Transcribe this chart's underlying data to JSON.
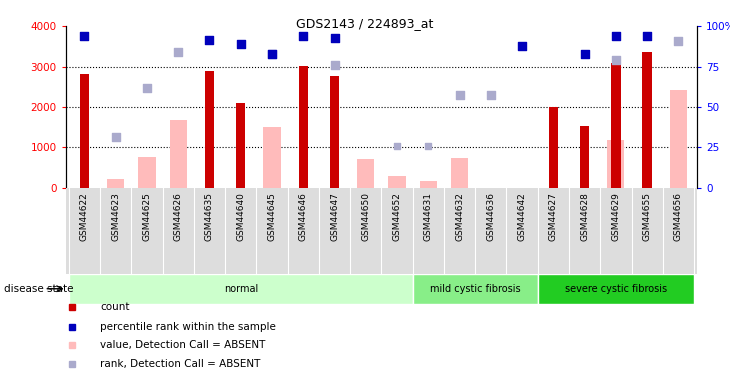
{
  "title": "GDS2143 / 224893_at",
  "samples": [
    "GSM44622",
    "GSM44623",
    "GSM44625",
    "GSM44626",
    "GSM44635",
    "GSM44640",
    "GSM44645",
    "GSM44646",
    "GSM44647",
    "GSM44650",
    "GSM44652",
    "GSM44631",
    "GSM44632",
    "GSM44636",
    "GSM44642",
    "GSM44627",
    "GSM44628",
    "GSM44629",
    "GSM44655",
    "GSM44656"
  ],
  "groups": [
    {
      "label": "normal",
      "start": 0,
      "end": 10,
      "color": "#ccffcc"
    },
    {
      "label": "mild cystic fibrosis",
      "start": 11,
      "end": 14,
      "color": "#88ee88"
    },
    {
      "label": "severe cystic fibrosis",
      "start": 15,
      "end": 19,
      "color": "#22cc22"
    }
  ],
  "count_values": [
    2820,
    null,
    null,
    null,
    2900,
    2100,
    null,
    3010,
    2760,
    null,
    null,
    null,
    null,
    null,
    null,
    2000,
    1520,
    3100,
    3350,
    null
  ],
  "rank_values": [
    3750,
    null,
    null,
    null,
    3670,
    3560,
    3300,
    3760,
    3700,
    null,
    null,
    null,
    null,
    null,
    3510,
    null,
    3310,
    3750,
    3750,
    null
  ],
  "absent_count_values": [
    null,
    200,
    750,
    1680,
    null,
    null,
    1490,
    null,
    null,
    700,
    290,
    170,
    720,
    null,
    null,
    null,
    null,
    1190,
    null,
    2430
  ],
  "absent_rank_values": [
    null,
    1260,
    2480,
    3360,
    null,
    null,
    3310,
    null,
    3030,
    null,
    null,
    null,
    2290,
    2290,
    null,
    null,
    null,
    3160,
    null,
    3640
  ],
  "absent_rank_dots": [
    null,
    null,
    null,
    null,
    null,
    null,
    null,
    null,
    null,
    null,
    1030,
    1030,
    null,
    null,
    null,
    null,
    null,
    null,
    null,
    null
  ],
  "ylim_left": [
    0,
    4000
  ],
  "ylim_right": [
    0,
    100
  ],
  "yticks_left": [
    0,
    1000,
    2000,
    3000,
    4000
  ],
  "yticks_right": [
    0,
    25,
    50,
    75,
    100
  ],
  "ytick_labels_right": [
    "0",
    "25",
    "50",
    "75",
    "100%"
  ],
  "bar_color_red": "#cc0000",
  "bar_color_pink": "#ffbbbb",
  "dot_color_blue": "#0000bb",
  "dot_color_lightblue": "#aaaacc",
  "disease_label": "disease state",
  "legend": [
    {
      "color": "#cc0000",
      "label": "count"
    },
    {
      "color": "#0000bb",
      "label": "percentile rank within the sample"
    },
    {
      "color": "#ffbbbb",
      "label": "value, Detection Call = ABSENT"
    },
    {
      "color": "#aaaacc",
      "label": "rank, Detection Call = ABSENT"
    }
  ]
}
